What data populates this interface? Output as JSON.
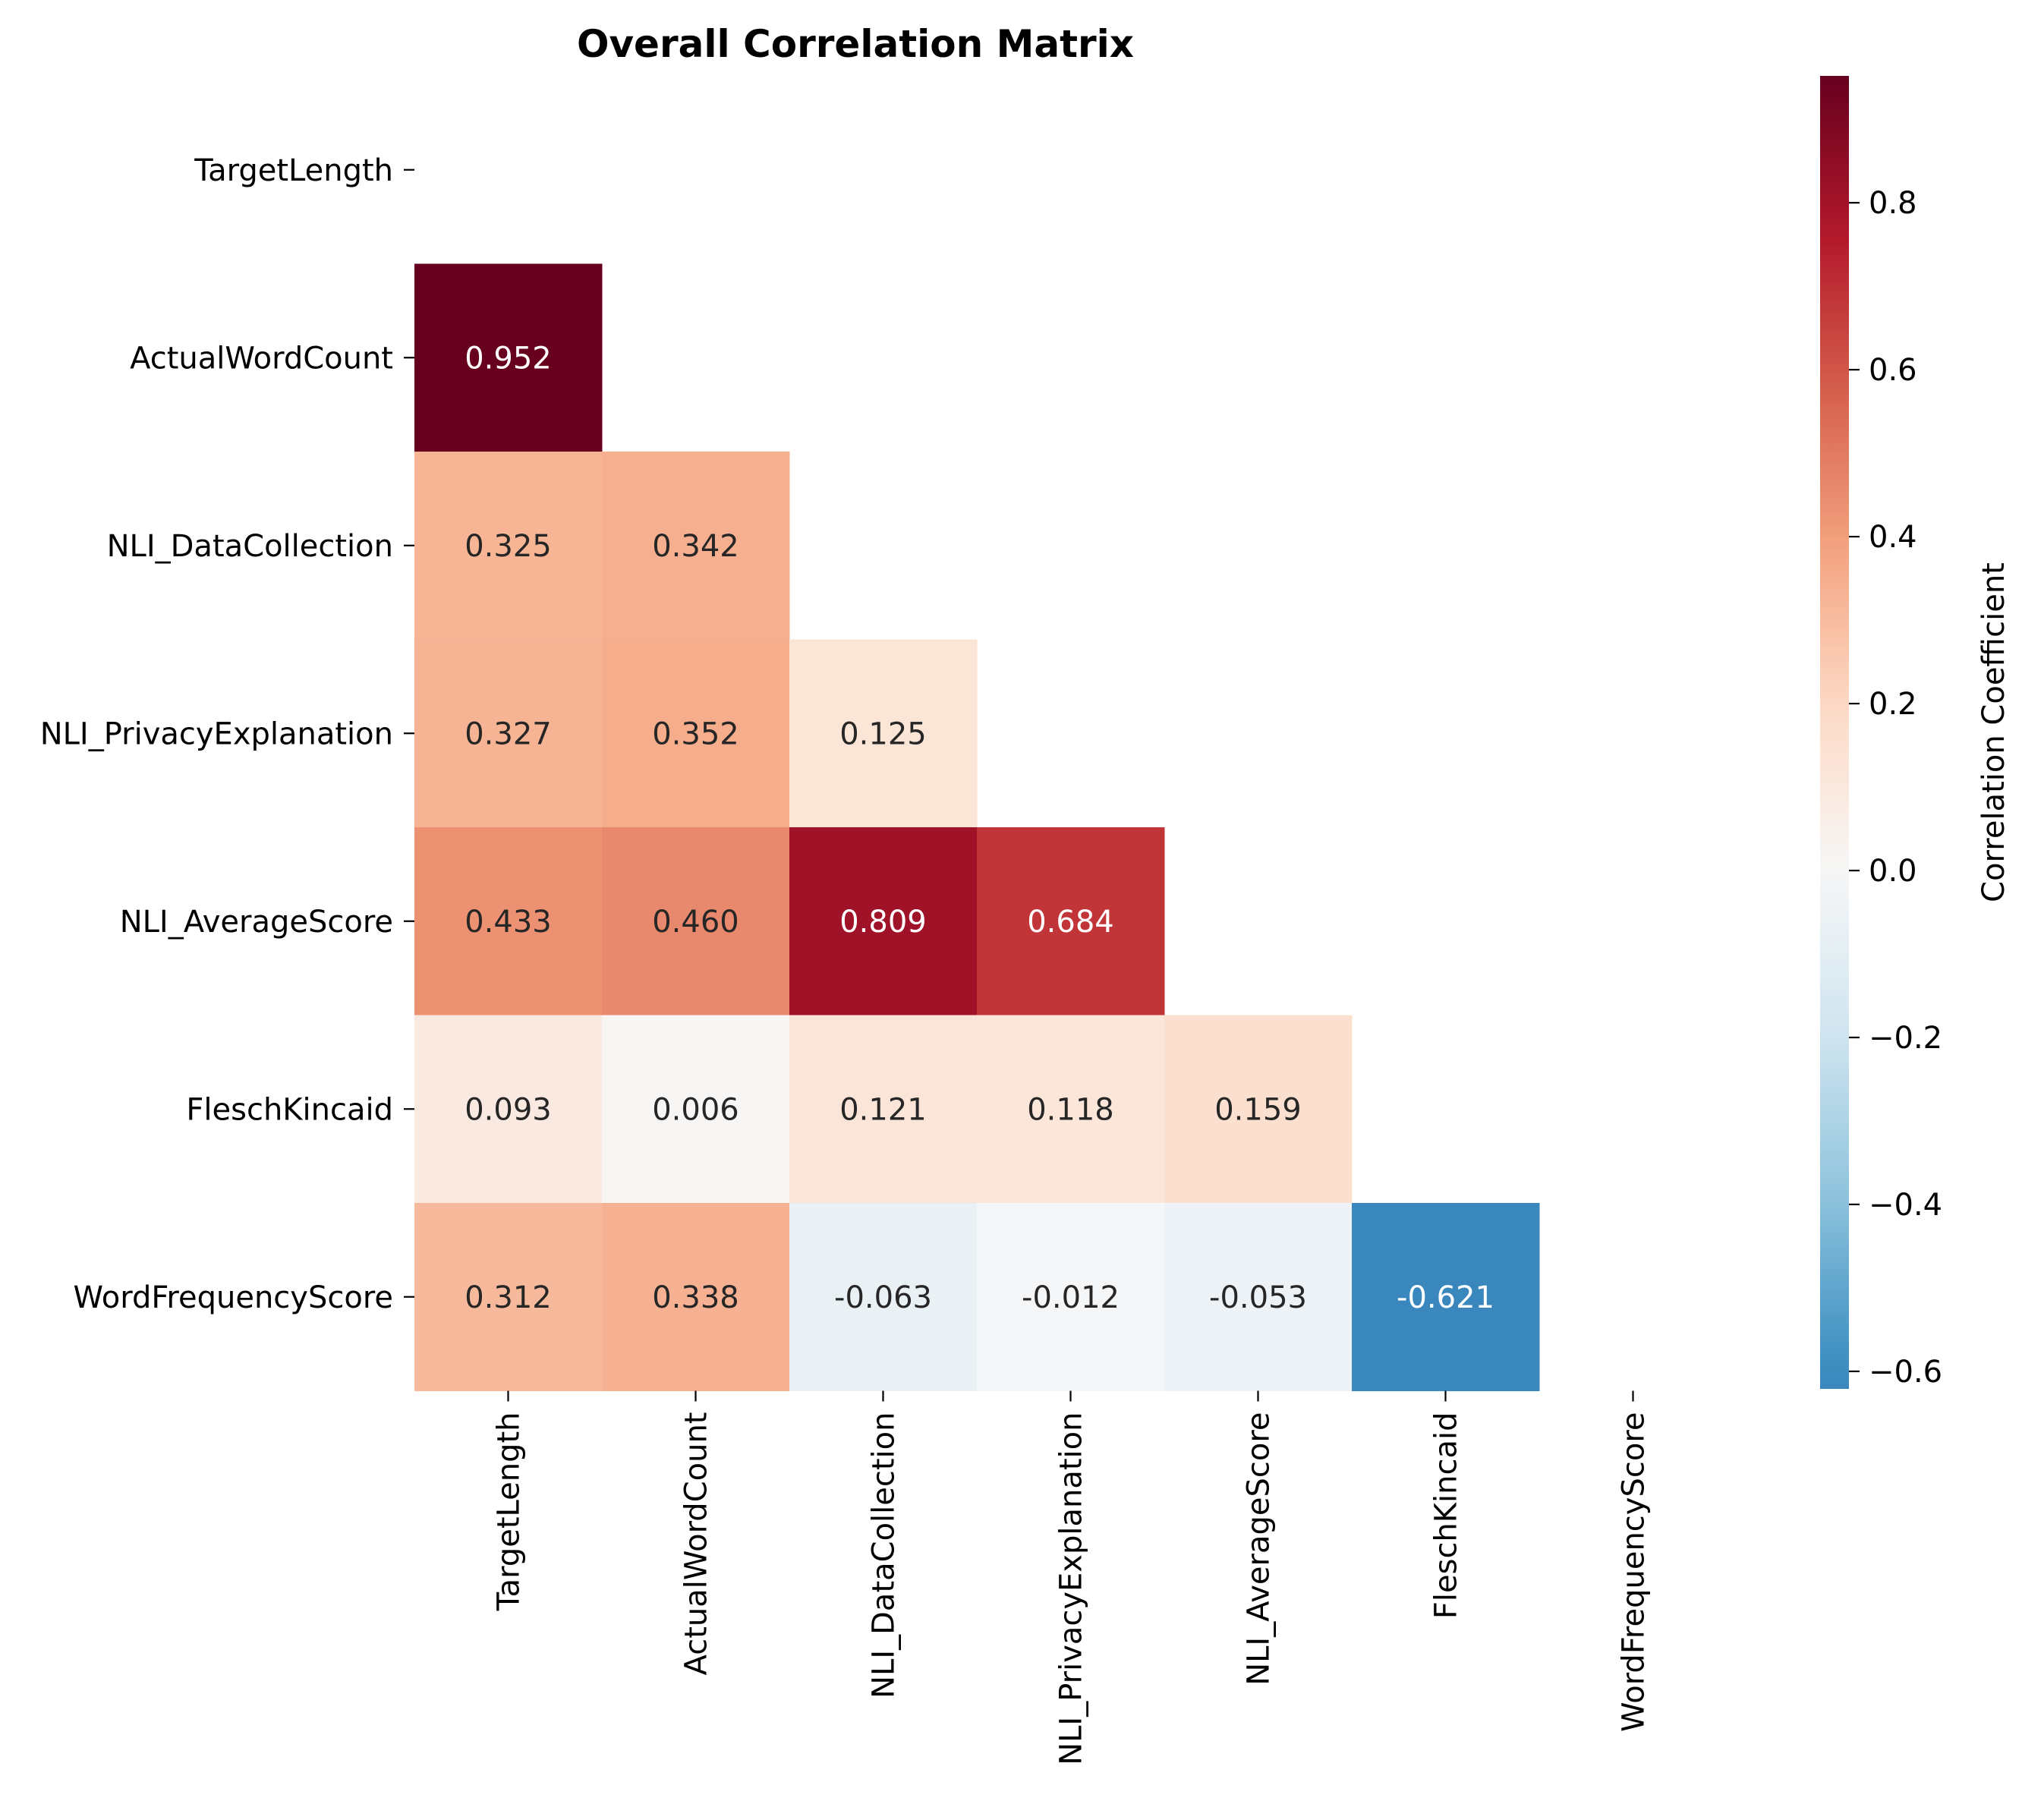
{
  "chart_data": {
    "type": "heatmap",
    "title": "Overall Correlation Matrix",
    "xlabel": "",
    "ylabel": "",
    "variables": [
      "TargetLength",
      "ActualWordCount",
      "NLI_DataCollection",
      "NLI_PrivacyExplanation",
      "NLI_AverageScore",
      "FleschKincaid",
      "WordFrequencyScore"
    ],
    "mask": "upper-triangle-including-diagonal",
    "values": [
      [
        null,
        null,
        null,
        null,
        null,
        null,
        null
      ],
      [
        0.952,
        null,
        null,
        null,
        null,
        null,
        null
      ],
      [
        0.325,
        0.342,
        null,
        null,
        null,
        null,
        null
      ],
      [
        0.327,
        0.352,
        0.125,
        null,
        null,
        null,
        null
      ],
      [
        0.433,
        0.46,
        0.809,
        0.684,
        null,
        null,
        null
      ],
      [
        0.093,
        0.006,
        0.121,
        0.118,
        0.159,
        null,
        null
      ],
      [
        0.312,
        0.338,
        -0.063,
        -0.012,
        -0.053,
        -0.621,
        null
      ]
    ],
    "annotations": [
      [
        null,
        null,
        null,
        null,
        null,
        null,
        null
      ],
      [
        "0.952",
        null,
        null,
        null,
        null,
        null,
        null
      ],
      [
        "0.325",
        "0.342",
        null,
        null,
        null,
        null,
        null
      ],
      [
        "0.327",
        "0.352",
        "0.125",
        null,
        null,
        null,
        null
      ],
      [
        "0.433",
        "0.460",
        "0.809",
        "0.684",
        null,
        null,
        null
      ],
      [
        "0.093",
        "0.006",
        "0.121",
        "0.118",
        "0.159",
        null,
        null
      ],
      [
        "0.312",
        "0.338",
        "-0.063",
        "-0.012",
        "-0.053",
        "-0.621",
        null
      ]
    ],
    "colorbar": {
      "label": "Correlation Coefficient",
      "colormap": "RdBu_r",
      "range": [
        -0.621,
        0.952
      ],
      "ticks": [
        -0.6,
        -0.4,
        -0.2,
        0.0,
        0.2,
        0.4,
        0.6,
        0.8
      ],
      "tick_labels": [
        "−0.6",
        "−0.4",
        "−0.2",
        "0.0",
        "0.2",
        "0.4",
        "0.6",
        "0.8"
      ]
    },
    "grid": false,
    "legend": "colorbar-right"
  }
}
